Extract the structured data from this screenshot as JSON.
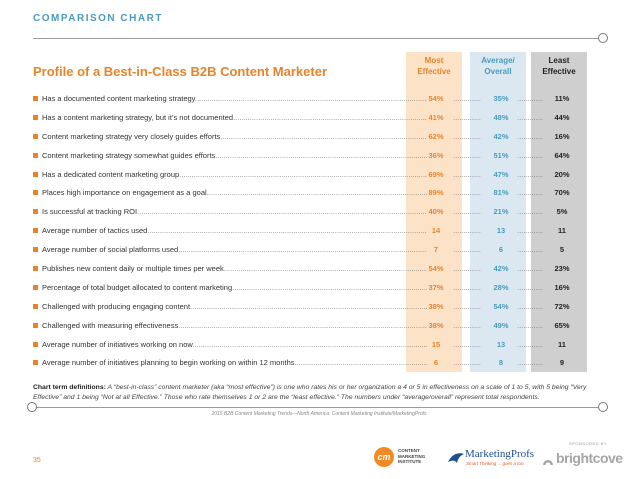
{
  "section_label": "COMPARISON CHART",
  "title": "Profile of a Best-in-Class B2B Content Marketer",
  "columns": {
    "most": "Most\nEffective",
    "avg": "Average/\nOverall",
    "least": "Least\nEffective"
  },
  "rows": [
    {
      "label": "Has a documented content marketing strategy",
      "most": "54%",
      "avg": "35%",
      "least": "11%"
    },
    {
      "label": "Has a content marketing strategy, but it’s not documented",
      "most": "41%",
      "avg": "48%",
      "least": "44%"
    },
    {
      "label": "Content marketing strategy very closely guides efforts",
      "most": "62%",
      "avg": "42%",
      "least": "16%"
    },
    {
      "label": "Content marketing strategy somewhat guides efforts",
      "most": "36%",
      "avg": "51%",
      "least": "64%"
    },
    {
      "label": "Has a dedicated content marketing group",
      "most": "69%",
      "avg": "47%",
      "least": "20%"
    },
    {
      "label": "Places high importance on engagement as a goal",
      "most": "89%",
      "avg": "81%",
      "least": "70%"
    },
    {
      "label": "Is successful at tracking ROI",
      "most": "40%",
      "avg": "21%",
      "least": "5%"
    },
    {
      "label": "Average number of tactics used",
      "most": "14",
      "avg": "13",
      "least": "11"
    },
    {
      "label": "Average number of social platforms used",
      "most": "7",
      "avg": "6",
      "least": "5"
    },
    {
      "label": "Publishes new content daily or multiple times per week",
      "most": "54%",
      "avg": "42%",
      "least": "23%"
    },
    {
      "label": "Percentage of total budget allocated to content marketing",
      "most": "37%",
      "avg": "28%",
      "least": "16%"
    },
    {
      "label": "Challenged with producing engaging content",
      "most": "38%",
      "avg": "54%",
      "least": "72%"
    },
    {
      "label": "Challenged with measuring effectiveness",
      "most": "38%",
      "avg": "49%",
      "least": "65%"
    },
    {
      "label": "Average number of initiatives working on now",
      "most": "15",
      "avg": "13",
      "least": "11"
    },
    {
      "label": "Average number of initiatives planning to begin working on within 12 months",
      "most": "6",
      "avg": "8",
      "least": "9"
    }
  ],
  "definitions": {
    "label": "Chart term definitions:",
    "text": "A “best-in-class” content marketer (aka “most effective”) is one who rates his or her organization a 4 or 5 in effectiveness on a scale of 1 to 5, with 5 being “Very Effective” and 1 being “Not at all Effective.” Those who rate themselves 1 or 2 are the “least effective.” The numbers under “average/overall” represent total respondents."
  },
  "source": "2015 B2B Content Marketing Trends—North America: Content Marketing Institute/MarketingProfs",
  "page_number": "35",
  "logos": {
    "cmi_mark": "cm",
    "cmi_text": "CONTENT\nMARKETING\nINSTITUTE",
    "marketingprofs_name": "MarketingProfs",
    "marketingprofs_tagline": "Smart Thinking ... goes a ton.",
    "sponsor_label": "SPONSORED BY",
    "brightcove_name": "brightcove"
  },
  "colors": {
    "orange": "#e8832a",
    "blue": "#4a9bbf",
    "most_bg": "#fce3c8",
    "avg_bg": "#dbe8f1",
    "least_bg": "#cfcfcf"
  }
}
